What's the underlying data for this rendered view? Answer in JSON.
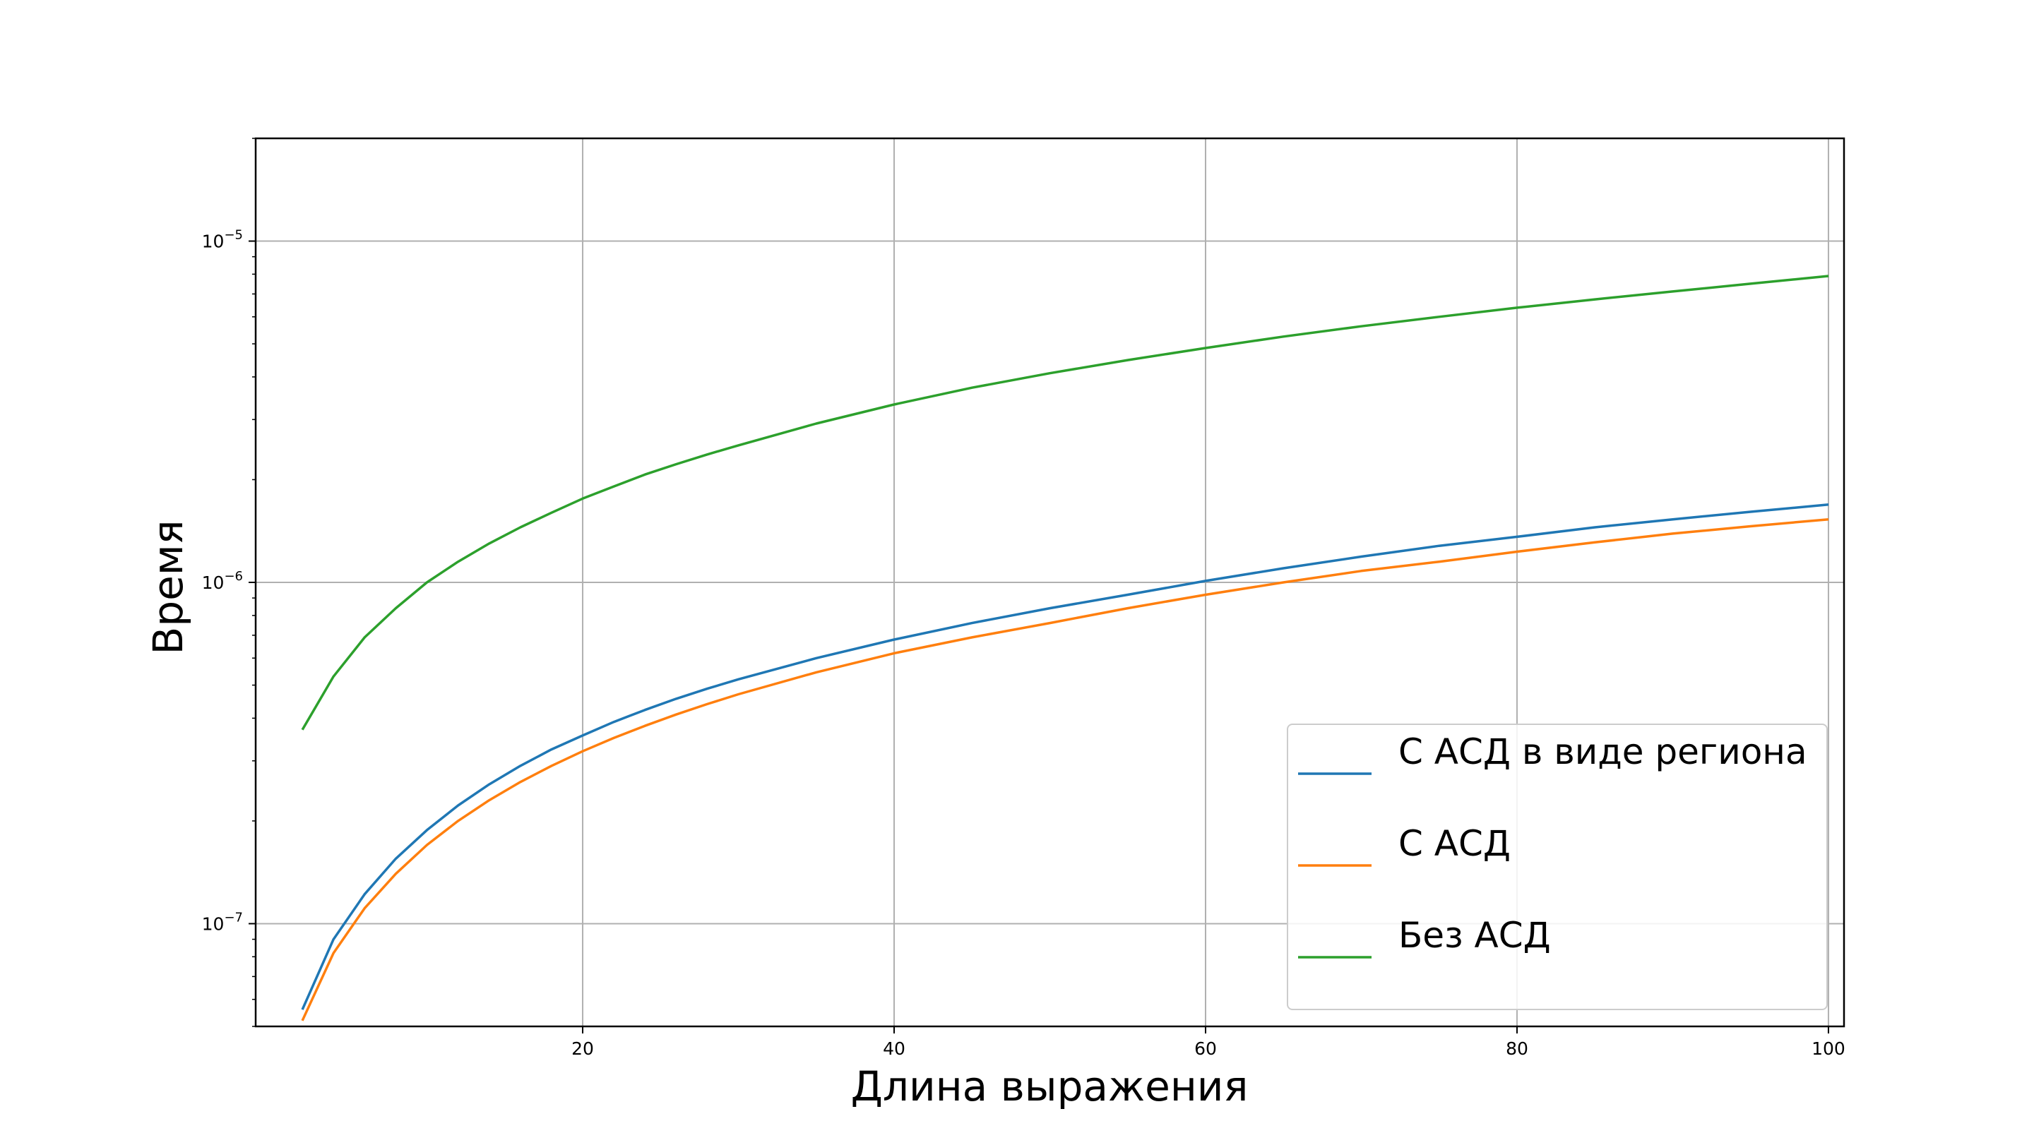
{
  "chart_data": {
    "type": "line",
    "xlabel": "Длина выражения",
    "ylabel": "Время",
    "xlim": [
      -1,
      101
    ],
    "ylim": [
      5e-08,
      2e-05
    ],
    "yscale": "log",
    "grid": true,
    "legend_position": "lower-right",
    "x_ticks": [
      20,
      40,
      60,
      80,
      100
    ],
    "y_ticks": [
      {
        "value": 1e-07,
        "base": "10",
        "exp": "−7"
      },
      {
        "value": 1e-06,
        "base": "10",
        "exp": "−6"
      },
      {
        "value": 1e-05,
        "base": "10",
        "exp": "−5"
      }
    ],
    "x": [
      2,
      4,
      6,
      8,
      10,
      12,
      14,
      16,
      18,
      20,
      22,
      24,
      26,
      28,
      30,
      35,
      40,
      45,
      50,
      55,
      60,
      65,
      70,
      75,
      80,
      85,
      90,
      95,
      100
    ],
    "series": [
      {
        "name": "С АСД в виде региона",
        "color": "#1f77b4",
        "values": [
          5.6e-08,
          9e-08,
          1.22e-07,
          1.55e-07,
          1.88e-07,
          2.22e-07,
          2.56e-07,
          2.9e-07,
          3.24e-07,
          3.56e-07,
          3.9e-07,
          4.23e-07,
          4.56e-07,
          4.88e-07,
          5.2e-07,
          6e-07,
          6.8e-07,
          7.6e-07,
          8.4e-07,
          9.2e-07,
          1.01e-06,
          1.1e-06,
          1.19e-06,
          1.28e-06,
          1.36e-06,
          1.45e-06,
          1.53e-06,
          1.61e-06,
          1.69e-06
        ]
      },
      {
        "name": "С АСД",
        "color": "#ff7f0e",
        "values": [
          5.2e-08,
          8.2e-08,
          1.11e-07,
          1.4e-07,
          1.7e-07,
          2e-07,
          2.3e-07,
          2.6e-07,
          2.9e-07,
          3.2e-07,
          3.5e-07,
          3.8e-07,
          4.1e-07,
          4.4e-07,
          4.7e-07,
          5.45e-07,
          6.2e-07,
          6.9e-07,
          7.6e-07,
          8.4e-07,
          9.2e-07,
          1e-06,
          1.08e-06,
          1.15e-06,
          1.23e-06,
          1.31e-06,
          1.39e-06,
          1.46e-06,
          1.53e-06
        ]
      },
      {
        "name": "Без АСД",
        "color": "#2ca02c",
        "values": [
          3.7e-07,
          5.3e-07,
          6.9e-07,
          8.4e-07,
          1e-06,
          1.15e-06,
          1.3e-06,
          1.45e-06,
          1.6e-06,
          1.76e-06,
          1.91e-06,
          2.07e-06,
          2.22e-06,
          2.37e-06,
          2.52e-06,
          2.92e-06,
          3.32e-06,
          3.72e-06,
          4.1e-06,
          4.48e-06,
          4.86e-06,
          5.25e-06,
          5.63e-06,
          6e-06,
          6.38e-06,
          6.75e-06,
          7.12e-06,
          7.5e-06,
          7.9e-06
        ]
      }
    ]
  }
}
